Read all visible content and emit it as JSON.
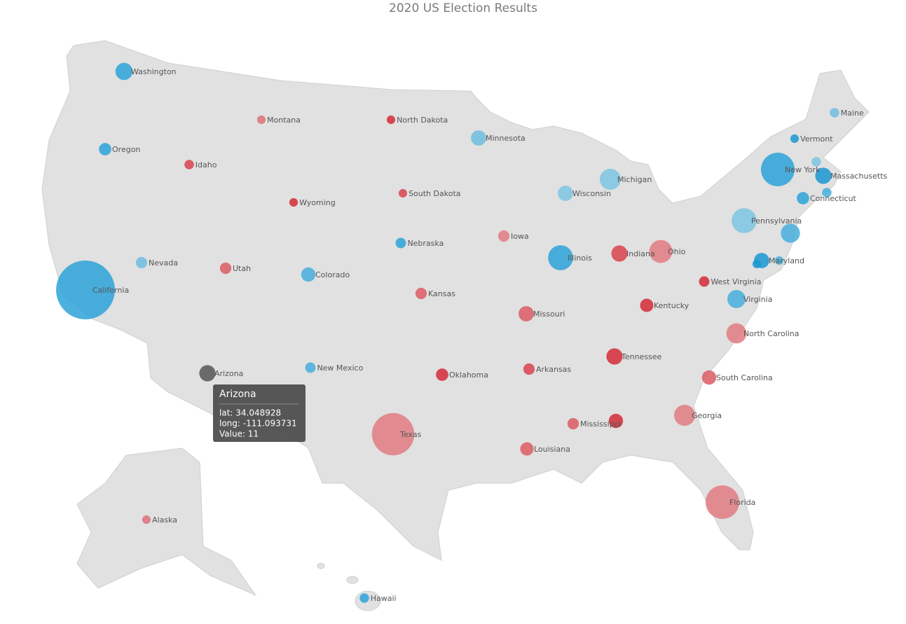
{
  "title": "2020 US Election Results",
  "bubbles": [
    {
      "name": "Washington",
      "value": 12,
      "color": "#2ca2d8"
    },
    {
      "name": "Oregon",
      "value": 7,
      "color": "#2ca2d8"
    },
    {
      "name": "California",
      "value": 55,
      "color": "#2ca2d8"
    },
    {
      "name": "Nevada",
      "value": 6,
      "color": "#6fbde0"
    },
    {
      "name": "Idaho",
      "value": 4,
      "color": "#d9434f"
    },
    {
      "name": "Montana",
      "value": 3,
      "color": "#df6e77"
    },
    {
      "name": "Wyoming",
      "value": 3,
      "color": "#d42a36"
    },
    {
      "name": "Utah",
      "value": 6,
      "color": "#dc5a64"
    },
    {
      "name": "Arizona",
      "value": 11,
      "color": "#555555"
    },
    {
      "name": "Colorado",
      "value": 9,
      "color": "#46aedd"
    },
    {
      "name": "New Mexico",
      "value": 5,
      "color": "#46aedd"
    },
    {
      "name": "North Dakota",
      "value": 3,
      "color": "#d42a36"
    },
    {
      "name": "South Dakota",
      "value": 3,
      "color": "#d9434f"
    },
    {
      "name": "Nebraska",
      "value": 5,
      "color": "#2ca2d8"
    },
    {
      "name": "Kansas",
      "value": 6,
      "color": "#dc5a64"
    },
    {
      "name": "Oklahoma",
      "value": 7,
      "color": "#d42a36"
    },
    {
      "name": "Texas",
      "value": 38,
      "color": "#e07b83"
    },
    {
      "name": "Minnesota",
      "value": 10,
      "color": "#6fbde0"
    },
    {
      "name": "Iowa",
      "value": 6,
      "color": "#e07b83"
    },
    {
      "name": "Missouri",
      "value": 10,
      "color": "#dc5a64"
    },
    {
      "name": "Arkansas",
      "value": 6,
      "color": "#d9434f"
    },
    {
      "name": "Louisiana",
      "value": 8,
      "color": "#dc5a64"
    },
    {
      "name": "Wisconsin",
      "value": 10,
      "color": "#7cc4e2"
    },
    {
      "name": "Illinois",
      "value": 20,
      "color": "#2ca2d8"
    },
    {
      "name": "Michigan",
      "value": 16,
      "color": "#7cc4e2"
    },
    {
      "name": "Indiana",
      "value": 11,
      "color": "#d9434f"
    },
    {
      "name": "Ohio",
      "value": 18,
      "color": "#e07b83"
    },
    {
      "name": "Kentucky",
      "value": 8,
      "color": "#d42a36"
    },
    {
      "name": "Tennessee",
      "value": 11,
      "color": "#d42a36"
    },
    {
      "name": "Mississippi",
      "value": 6,
      "color": "#dc5a64"
    },
    {
      "name": null,
      "value": 9,
      "color": "#d42a36"
    },
    {
      "name": "Georgia",
      "value": 16,
      "color": "#e07b83"
    },
    {
      "name": "Florida",
      "value": 29,
      "color": "#e07b83"
    },
    {
      "name": "South Carolina",
      "value": 9,
      "color": "#dc5a64"
    },
    {
      "name": "North Carolina",
      "value": 15,
      "color": "#e07b83"
    },
    {
      "name": "Virginia",
      "value": 13,
      "color": "#46aedd"
    },
    {
      "name": "West Virginia",
      "value": 5,
      "color": "#d42a36"
    },
    {
      "name": "Pennsylvania",
      "value": 20,
      "color": "#7cc4e2"
    },
    {
      "name": "New York",
      "value": 29,
      "color": "#2ca2d8"
    },
    {
      "name": "Maryland",
      "value": 10,
      "color": "#1a96d2"
    },
    {
      "name": null,
      "value": 3,
      "color": "#1a96d2"
    },
    {
      "name": null,
      "value": 3,
      "color": "#46aedd"
    },
    {
      "name": null,
      "value": 14,
      "color": "#46aedd"
    },
    {
      "name": "Connecticut",
      "value": 7,
      "color": "#2ca2d8"
    },
    {
      "name": "Massachusetts",
      "value": 11,
      "color": "#1a96d2"
    },
    {
      "name": null,
      "value": 4,
      "color": "#46aedd"
    },
    {
      "name": null,
      "value": 4,
      "color": "#7cc4e2"
    },
    {
      "name": "Vermont",
      "value": 3,
      "color": "#1a96d2"
    },
    {
      "name": "Maine",
      "value": 4,
      "color": "#6fbde0"
    },
    {
      "name": "Alaska",
      "value": 3,
      "color": "#df6e77"
    },
    {
      "name": "Hawaii",
      "value": 4,
      "color": "#2ca2d8"
    }
  ],
  "tooltip": {
    "title": "Arizona",
    "lines": [
      "lat: 34.048928",
      "long: -111.093731",
      "Value: 11"
    ]
  }
}
